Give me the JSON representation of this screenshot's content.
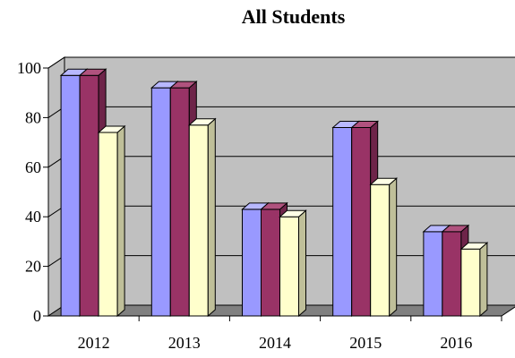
{
  "chart_data": {
    "type": "bar",
    "title": "All Students",
    "xlabel": "",
    "ylabel": "",
    "categories": [
      "2012",
      "2013",
      "2014",
      "2015",
      "2016"
    ],
    "series": [
      {
        "values": [
          97,
          92,
          43,
          76,
          34
        ]
      },
      {
        "values": [
          97,
          92,
          43,
          76,
          34
        ]
      },
      {
        "values": [
          74,
          77,
          40,
          53,
          27
        ]
      }
    ],
    "ylim": [
      0,
      100
    ],
    "yticks": [
      "0",
      "20",
      "40",
      "60",
      "80",
      "100"
    ],
    "grid": true,
    "three_d": true,
    "colors": {
      "series": [
        "#9999ff",
        "#993366",
        "#ffffcc"
      ],
      "series_top": [
        "#b8b8ff",
        "#b0527e",
        "#ffffe6"
      ],
      "series_side": [
        "#6f6fbf",
        "#6e2449",
        "#bfbf99"
      ],
      "wall": "#c0c0c0",
      "floor": "#808080"
    }
  }
}
